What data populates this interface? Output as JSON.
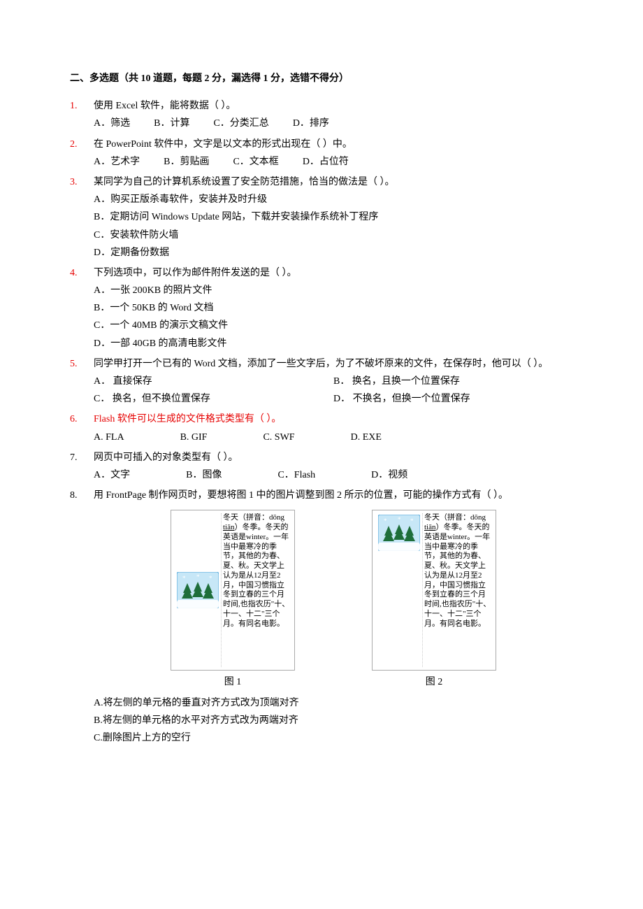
{
  "section_header": "二、多选题（共 10 道题，每题 2 分，漏选得 1 分，选错不得分）",
  "questions": [
    {
      "num": "1.",
      "stem": "使用 Excel 软件，能将数据（   ）。",
      "options_layout": "row",
      "red_num": true,
      "options": [
        "A．筛选",
        "B．计算",
        "C．分类汇总",
        "D．排序"
      ]
    },
    {
      "num": "2.",
      "stem": "在 PowerPoint 软件中，文字是以文本的形式出现在（   ）中。",
      "options_layout": "row",
      "red_num": true,
      "options": [
        "A．艺术字",
        "B．剪贴画",
        "C．文本框",
        "D．占位符"
      ]
    },
    {
      "num": "3.",
      "stem": "某同学为自己的计算机系统设置了安全防范措施，恰当的做法是（   ）。",
      "options_layout": "col",
      "red_num": true,
      "options": [
        "A．购买正版杀毒软件，安装并及时升级",
        "B．定期访问 Windows Update 网站，下载并安装操作系统补丁程序",
        "C．安装软件防火墙",
        "D．定期备份数据"
      ]
    },
    {
      "num": "4.",
      "stem": "下列选项中，可以作为邮件附件发送的是（   ）。",
      "options_layout": "col",
      "red_num": true,
      "options": [
        "A．一张 200KB 的照片文件",
        "B．一个 50KB 的 Word 文档",
        "C．一个 40MB 的演示文稿文件",
        "D．一部 40GB 的高清电影文件"
      ]
    },
    {
      "num": "5.",
      "stem": "同学甲打开一个已有的 Word 文档，添加了一些文字后，为了不破坏原来的文件，在保存时，他可以（   ）。",
      "options_layout": "2col",
      "red_num": true,
      "options": [
        "A．  直接保存",
        "B．  换名，且换一个位置保存",
        "C．  换名，但不换位置保存",
        "D．  不换名，但换一个位置保存"
      ]
    },
    {
      "num": "6.",
      "stem": "Flash 软件可以生成的文件格式类型有（   ）。",
      "stem_red": true,
      "options_layout": "row-wide",
      "red_num": true,
      "options": [
        "A. FLA",
        "B. GIF",
        "C. SWF",
        "D. EXE"
      ]
    },
    {
      "num": "7.",
      "stem": "网页中可插入的对象类型有（   ）。",
      "options_layout": "row-wide",
      "options": [
        "A．文字",
        "B．图像",
        "C．Flash",
        "D．视频"
      ]
    },
    {
      "num": "8.",
      "stem": "用 FrontPage 制作网页时，要想将图 1 中的图片调整到图 2 所示的位置，可能的操作方式有（   ）。",
      "options_layout": "col-after-fig",
      "options": [
        "A.将左侧的单元格的垂直对齐方式改为顶端对齐",
        "B.将左侧的单元格的水平对齐方式改为两端对齐",
        "C.删除图片上方的空行"
      ]
    }
  ],
  "fig": {
    "caption1": "图 1",
    "caption2": "图 2",
    "text_prefix": "冬天（拼音：dōng ",
    "pinyin": "tiān",
    "text_suffix": "）冬季。冬天的英语是winter。一年当中最寒冷的季节，其他的为春、夏、秋。天文学上认为是从12月至2月，中国习惯指立冬到立春的三个月时间,也指农历\"十、十一、十二\"三个月。有同名电影。",
    "img_bg": "#c7e7f7",
    "img_tree": "#1e6e3a",
    "img_snow": "#ffffff",
    "img_border": "#4aa3d8"
  }
}
